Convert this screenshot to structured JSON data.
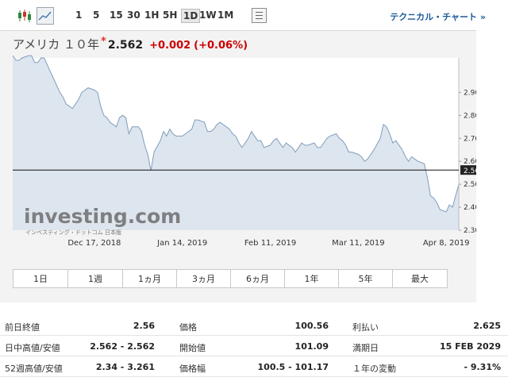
{
  "toolbar": {
    "chart_type_icons": [
      "candlestick-icon",
      "line-chart-icon"
    ],
    "active_chart_type": "line-chart-icon",
    "timeframes": [
      "1",
      "5",
      "15",
      "30",
      "1H",
      "5H",
      "1D",
      "1W",
      "1M"
    ],
    "active_timeframe": "1D",
    "technical_chart_link": "テクニカル・チャート »"
  },
  "quote": {
    "name": "アメリカ １０年",
    "star": "*",
    "price": "2.562",
    "change": "+0.002",
    "change_pct": "(+0.06%)"
  },
  "watermark": {
    "brand": "investing.com",
    "tagline": "インベスティング・ドットコム 日本版"
  },
  "colors": {
    "line": "#7f9dbc",
    "area": "#dde5ee",
    "change": "#cc0000",
    "link": "#1a5a9a"
  },
  "chart_data": {
    "type": "area",
    "title": "",
    "xlabel": "",
    "ylabel": "",
    "ylim": [
      2.3,
      3.05
    ],
    "y_ticks": [
      "2.900",
      "2.800",
      "2.700",
      "2.600",
      "2.500",
      "2.400",
      "2.300"
    ],
    "x_tick_labels": [
      "Dec 17, 2018",
      "Jan 14, 2019",
      "Feb 11, 2019",
      "Mar 11, 2019",
      "Apr 8, 2019"
    ],
    "x_tick_dates": [
      "2018-12-17",
      "2019-01-14",
      "2019-02-11",
      "2019-03-11",
      "2019-04-08"
    ],
    "x_range": [
      "2018-11-21",
      "2019-04-12"
    ],
    "current_price_line": 2.562,
    "current_price_label": "2.562",
    "series": [
      {
        "x": [
          "2018-11-21",
          "2018-11-22",
          "2018-11-23",
          "2018-11-24",
          "2018-11-26",
          "2018-11-27",
          "2018-11-28",
          "2018-11-29",
          "2018-11-30",
          "2018-12-01",
          "2018-12-03",
          "2018-12-04",
          "2018-12-05",
          "2018-12-06",
          "2018-12-07",
          "2018-12-08",
          "2018-12-10",
          "2018-12-11",
          "2018-12-12",
          "2018-12-13",
          "2018-12-14",
          "2018-12-15",
          "2018-12-17",
          "2018-12-18",
          "2018-12-19",
          "2018-12-20",
          "2018-12-21",
          "2018-12-22",
          "2018-12-24",
          "2018-12-25",
          "2018-12-26",
          "2018-12-27",
          "2018-12-28",
          "2018-12-29",
          "2018-12-31",
          "2019-01-01",
          "2019-01-02",
          "2019-01-03",
          "2019-01-04",
          "2019-01-05",
          "2019-01-07",
          "2019-01-08",
          "2019-01-09",
          "2019-01-10",
          "2019-01-11",
          "2019-01-12",
          "2019-01-14",
          "2019-01-15",
          "2019-01-16",
          "2019-01-17",
          "2019-01-18",
          "2019-01-19",
          "2019-01-21",
          "2019-01-22",
          "2019-01-23",
          "2019-01-24",
          "2019-01-25",
          "2019-01-26",
          "2019-01-28",
          "2019-01-29",
          "2019-01-30",
          "2019-01-31",
          "2019-02-01",
          "2019-02-02",
          "2019-02-04",
          "2019-02-05",
          "2019-02-06",
          "2019-02-07",
          "2019-02-08",
          "2019-02-09",
          "2019-02-11",
          "2019-02-12",
          "2019-02-13",
          "2019-02-14",
          "2019-02-15",
          "2019-02-16",
          "2019-02-18",
          "2019-02-19",
          "2019-02-20",
          "2019-02-21",
          "2019-02-22",
          "2019-02-23",
          "2019-02-25",
          "2019-02-26",
          "2019-02-27",
          "2019-02-28",
          "2019-03-01",
          "2019-03-02",
          "2019-03-04",
          "2019-03-05",
          "2019-03-06",
          "2019-03-07",
          "2019-03-08",
          "2019-03-09",
          "2019-03-11",
          "2019-03-12",
          "2019-03-13",
          "2019-03-14",
          "2019-03-15",
          "2019-03-16",
          "2019-03-18",
          "2019-03-19",
          "2019-03-20",
          "2019-03-21",
          "2019-03-22",
          "2019-03-23",
          "2019-03-25",
          "2019-03-26",
          "2019-03-27",
          "2019-03-28",
          "2019-03-29",
          "2019-03-30",
          "2019-04-01",
          "2019-04-02",
          "2019-04-03",
          "2019-04-04",
          "2019-04-05",
          "2019-04-06",
          "2019-04-08",
          "2019-04-09",
          "2019-04-10",
          "2019-04-11",
          "2019-04-12"
        ],
        "values": [
          3.06,
          3.04,
          3.04,
          3.05,
          3.06,
          3.06,
          3.03,
          3.03,
          3.05,
          3.05,
          2.99,
          2.96,
          2.93,
          2.9,
          2.88,
          2.85,
          2.83,
          2.85,
          2.87,
          2.9,
          2.91,
          2.92,
          2.91,
          2.9,
          2.84,
          2.8,
          2.79,
          2.77,
          2.75,
          2.79,
          2.8,
          2.79,
          2.72,
          2.75,
          2.75,
          2.73,
          2.67,
          2.63,
          2.56,
          2.64,
          2.69,
          2.73,
          2.71,
          2.74,
          2.72,
          2.71,
          2.71,
          2.72,
          2.73,
          2.74,
          2.78,
          2.78,
          2.77,
          2.73,
          2.73,
          2.74,
          2.76,
          2.77,
          2.75,
          2.74,
          2.72,
          2.71,
          2.68,
          2.66,
          2.7,
          2.73,
          2.71,
          2.69,
          2.69,
          2.66,
          2.67,
          2.69,
          2.7,
          2.68,
          2.66,
          2.68,
          2.66,
          2.64,
          2.66,
          2.68,
          2.67,
          2.67,
          2.68,
          2.66,
          2.66,
          2.68,
          2.7,
          2.71,
          2.72,
          2.7,
          2.69,
          2.67,
          2.64,
          2.64,
          2.63,
          2.62,
          2.6,
          2.61,
          2.63,
          2.65,
          2.7,
          2.76,
          2.75,
          2.72,
          2.68,
          2.69,
          2.65,
          2.62,
          2.6,
          2.62,
          2.61,
          2.6,
          2.59,
          2.53,
          2.45,
          2.44,
          2.42,
          2.39,
          2.38,
          2.41,
          2.4,
          2.45,
          2.5
        ]
      }
    ]
  },
  "periods": [
    "1日",
    "1週",
    "1ヵ月",
    "3ヵ月",
    "6ヵ月",
    "1年",
    "5年",
    "最大"
  ],
  "stats": {
    "rows": [
      [
        {
          "label": "前日終値",
          "value": "2.56"
        },
        {
          "label": "価格",
          "value": "100.56"
        },
        {
          "label": "利払い",
          "value": "2.625"
        }
      ],
      [
        {
          "label": "日中高値/安値",
          "value": "2.562 - 2.562"
        },
        {
          "label": "開始値",
          "value": "101.09"
        },
        {
          "label": "満期日",
          "value": "15 FEB 2029"
        }
      ],
      [
        {
          "label": "52週高値/安値",
          "value": "2.34 - 3.261"
        },
        {
          "label": "価格幅",
          "value": "100.5 - 101.17"
        },
        {
          "label": "１年の変動",
          "value": "- 9.31%"
        }
      ]
    ]
  }
}
